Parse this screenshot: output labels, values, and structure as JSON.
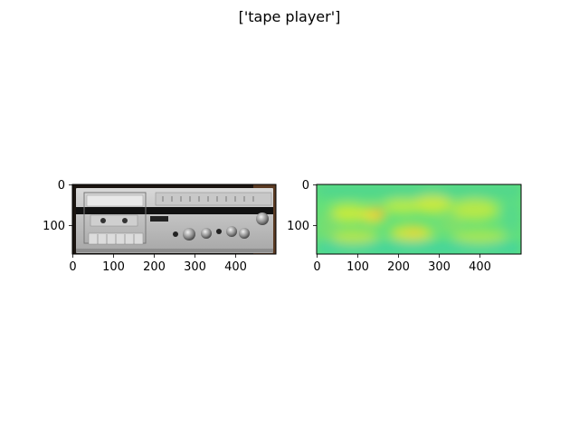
{
  "figure": {
    "title": "['tape player']"
  },
  "chart_data": [
    {
      "type": "image",
      "content": "photo of a silver cassette tape deck / stereo receiver",
      "image_width": 500,
      "image_height": 170,
      "xlim": [
        0,
        500
      ],
      "ylim": [
        170,
        0
      ],
      "x_ticks": [
        0,
        100,
        200,
        300,
        400
      ],
      "y_ticks": [
        0,
        100
      ]
    },
    {
      "type": "heatmap",
      "content": "saliency / attention map",
      "colormap": "jet-like",
      "image_width": 500,
      "image_height": 170,
      "xlim": [
        0,
        500
      ],
      "ylim": [
        170,
        0
      ],
      "x_ticks": [
        0,
        100,
        200,
        300,
        400
      ],
      "y_ticks": [
        0,
        100
      ]
    }
  ]
}
